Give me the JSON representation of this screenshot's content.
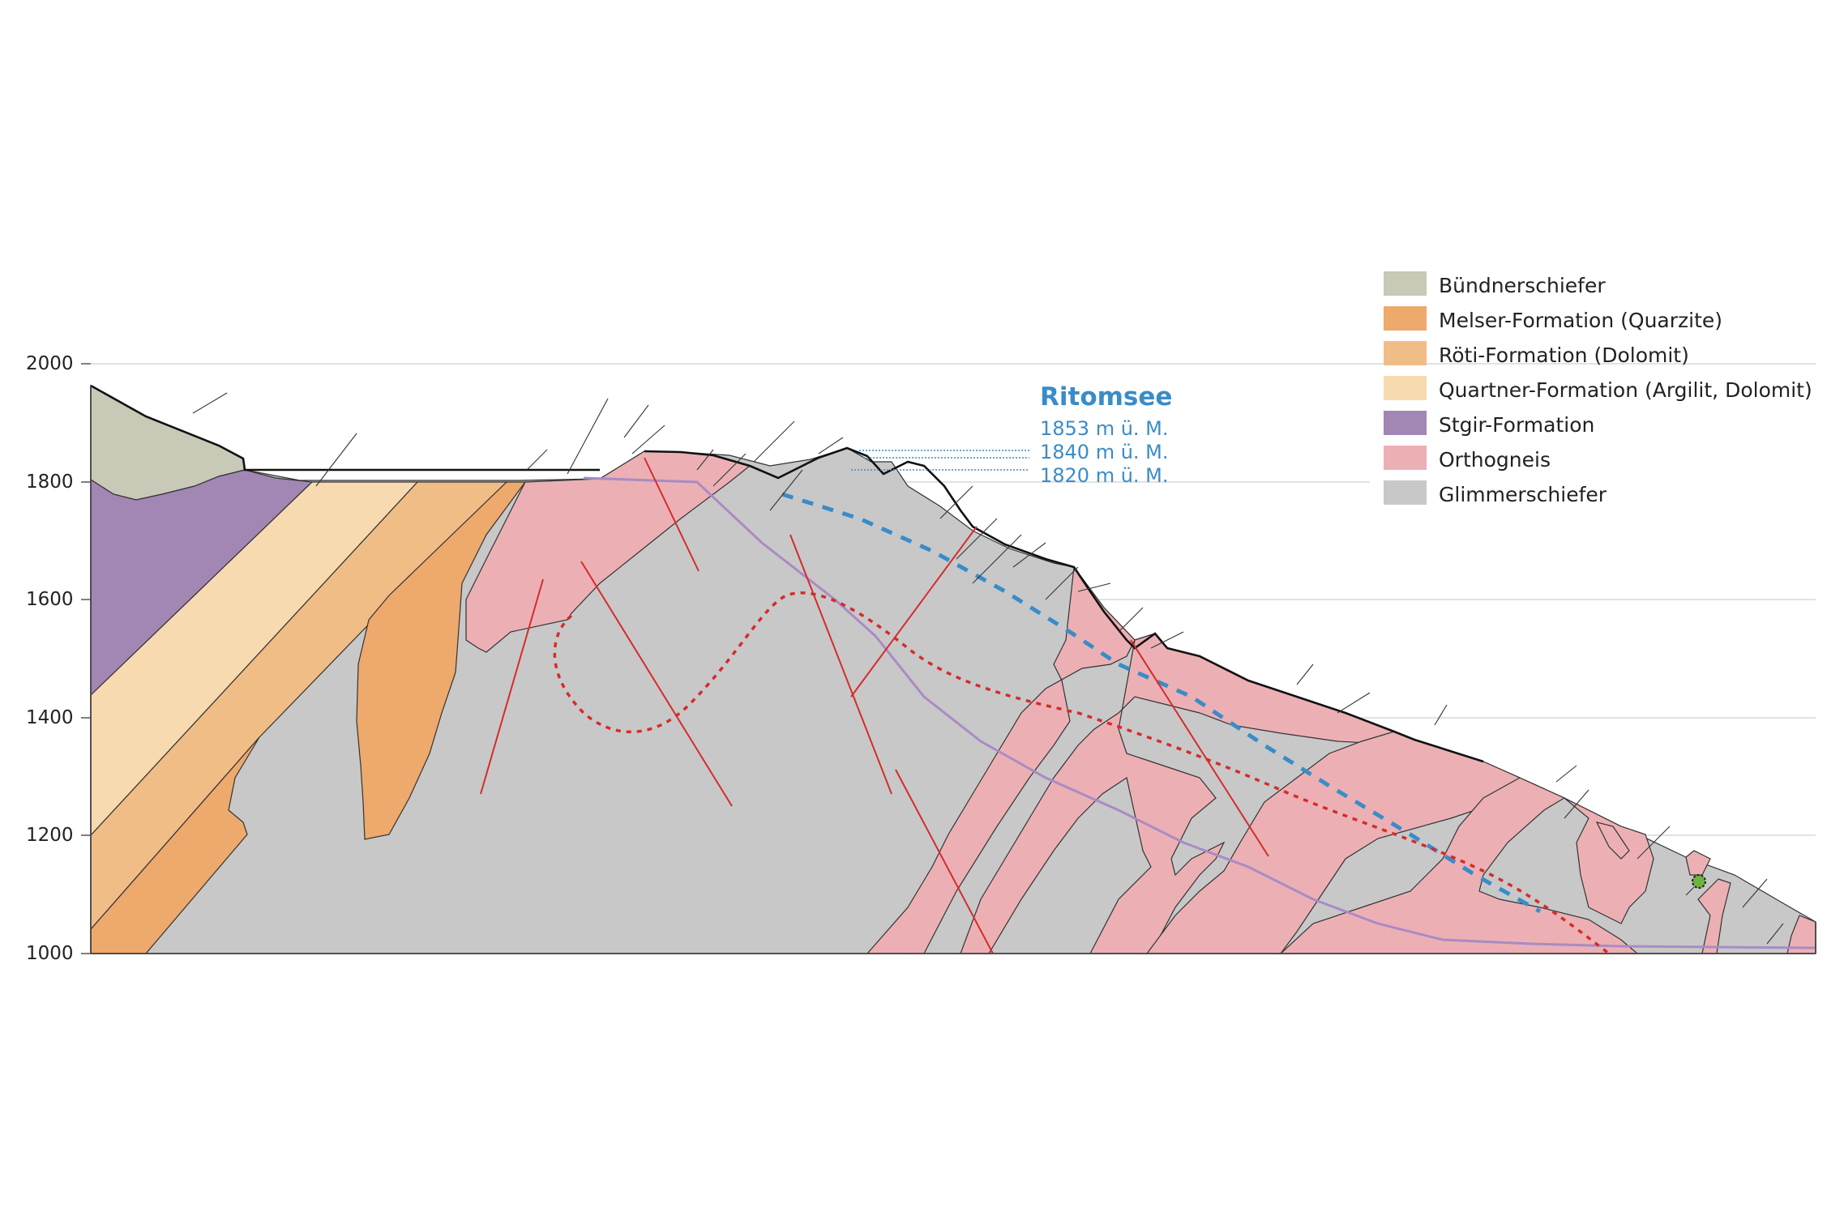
{
  "y_axis": {
    "min": 1000,
    "max": 2000,
    "ticks": [
      "2000",
      "1800",
      "1600",
      "1400",
      "1200",
      "1000"
    ]
  },
  "lake": {
    "name": "Ritomsee",
    "levels": [
      "1853 m ü. M.",
      "1840 m ü. M.",
      "1820 m ü. M."
    ]
  },
  "legend": [
    {
      "label": "Bündnerschiefer",
      "color": "#c8c9b6"
    },
    {
      "label": "Melser-Formation (Quarzite)",
      "color": "#eea96c"
    },
    {
      "label": "Röti-Formation (Dolomit)",
      "color": "#f1bd86"
    },
    {
      "label": "Quartner-Formation (Argilit, Dolomit)",
      "color": "#f7dab0"
    },
    {
      "label": "Stgir-Formation",
      "color": "#a286b3"
    },
    {
      "label": "Orthogneis",
      "color": "#ecb0b4"
    },
    {
      "label": "Glimmerschiefer",
      "color": "#c8c8c8"
    }
  ],
  "colors": {
    "fault": "#d62b2b",
    "blue_dashed": "#3a8cc8",
    "red_dotted": "#d62b2b",
    "tunnel": "#a98bc4",
    "gridline": "#d9d9d9"
  }
}
